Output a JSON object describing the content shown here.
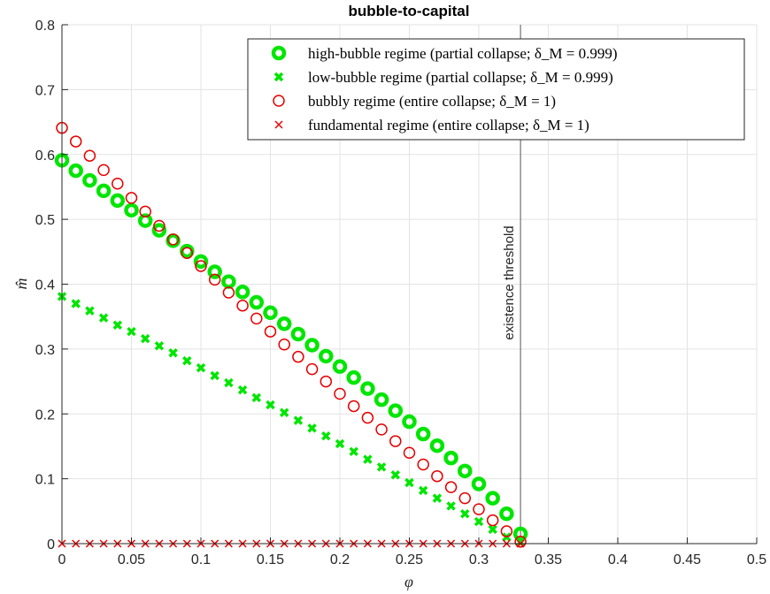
{
  "chart_data": {
    "type": "scatter",
    "title": "bubble-to-capital",
    "xlabel": "φ",
    "ylabel": "m̂",
    "xlim": [
      0,
      0.5
    ],
    "ylim": [
      0,
      0.8
    ],
    "xticks": [
      0,
      0.05,
      0.1,
      0.15,
      0.2,
      0.25,
      0.3,
      0.35,
      0.4,
      0.45,
      0.5
    ],
    "xtick_labels": [
      "0",
      "0.05",
      "0.1",
      "0.15",
      "0.2",
      "0.25",
      "0.3",
      "0.35",
      "0.4",
      "0.45",
      "0.5"
    ],
    "yticks": [
      0,
      0.1,
      0.2,
      0.3,
      0.4,
      0.5,
      0.6,
      0.7,
      0.8
    ],
    "ytick_labels": [
      "0",
      "0.1",
      "0.2",
      "0.3",
      "0.4",
      "0.5",
      "0.6",
      "0.7",
      "0.8"
    ],
    "grid": true,
    "legend_position": "top-right",
    "x": [
      0,
      0.01,
      0.02,
      0.03,
      0.04,
      0.05,
      0.06,
      0.07,
      0.08,
      0.09,
      0.1,
      0.11,
      0.12,
      0.13,
      0.14,
      0.15,
      0.16,
      0.17,
      0.18,
      0.19,
      0.2,
      0.21,
      0.22,
      0.23,
      0.24,
      0.25,
      0.26,
      0.27,
      0.28,
      0.29,
      0.3,
      0.31,
      0.32,
      0.33
    ],
    "series": [
      {
        "name": "high-bubble regime (partial collapse; δ_M = 0.999)",
        "marker": "thick-circle",
        "color": "#00e600",
        "values": [
          0.591,
          0.575,
          0.56,
          0.544,
          0.529,
          0.514,
          0.498,
          0.483,
          0.467,
          0.451,
          0.435,
          0.419,
          0.404,
          0.388,
          0.372,
          0.356,
          0.339,
          0.323,
          0.306,
          0.289,
          0.273,
          0.256,
          0.239,
          0.222,
          0.205,
          0.188,
          0.169,
          0.151,
          0.132,
          0.112,
          0.092,
          0.07,
          0.046,
          0.015
        ]
      },
      {
        "name": "low-bubble regime (partial collapse; δ_M = 0.999)",
        "marker": "thick-x",
        "color": "#00e600",
        "values": [
          0.381,
          0.37,
          0.359,
          0.348,
          0.337,
          0.327,
          0.316,
          0.305,
          0.294,
          0.282,
          0.271,
          0.259,
          0.248,
          0.237,
          0.225,
          0.214,
          0.202,
          0.19,
          0.178,
          0.166,
          0.154,
          0.142,
          0.13,
          0.118,
          0.106,
          0.094,
          0.082,
          0.07,
          0.058,
          0.046,
          0.034,
          0.022,
          0.01,
          0.002
        ]
      },
      {
        "name": "bubbly regime (entire collapse; δ_M = 1)",
        "marker": "circle",
        "color": "#e60000",
        "values": [
          0.641,
          0.62,
          0.598,
          0.576,
          0.555,
          0.533,
          0.512,
          0.49,
          0.469,
          0.448,
          0.428,
          0.407,
          0.387,
          0.367,
          0.347,
          0.327,
          0.307,
          0.288,
          0.269,
          0.25,
          0.231,
          0.212,
          0.194,
          0.176,
          0.158,
          0.14,
          0.122,
          0.104,
          0.087,
          0.07,
          0.053,
          0.036,
          0.019,
          0.003
        ]
      },
      {
        "name": "fundamental regime (entire collapse; δ_M = 1)",
        "marker": "x",
        "color": "#e60000",
        "values": [
          0,
          0,
          0,
          0,
          0,
          0,
          0,
          0,
          0,
          0,
          0,
          0,
          0,
          0,
          0,
          0,
          0,
          0,
          0,
          0,
          0,
          0,
          0,
          0,
          0,
          0,
          0,
          0,
          0,
          0,
          0,
          0,
          0,
          0
        ]
      }
    ],
    "vline": {
      "x": 0.33,
      "label": "existence threshold"
    }
  }
}
